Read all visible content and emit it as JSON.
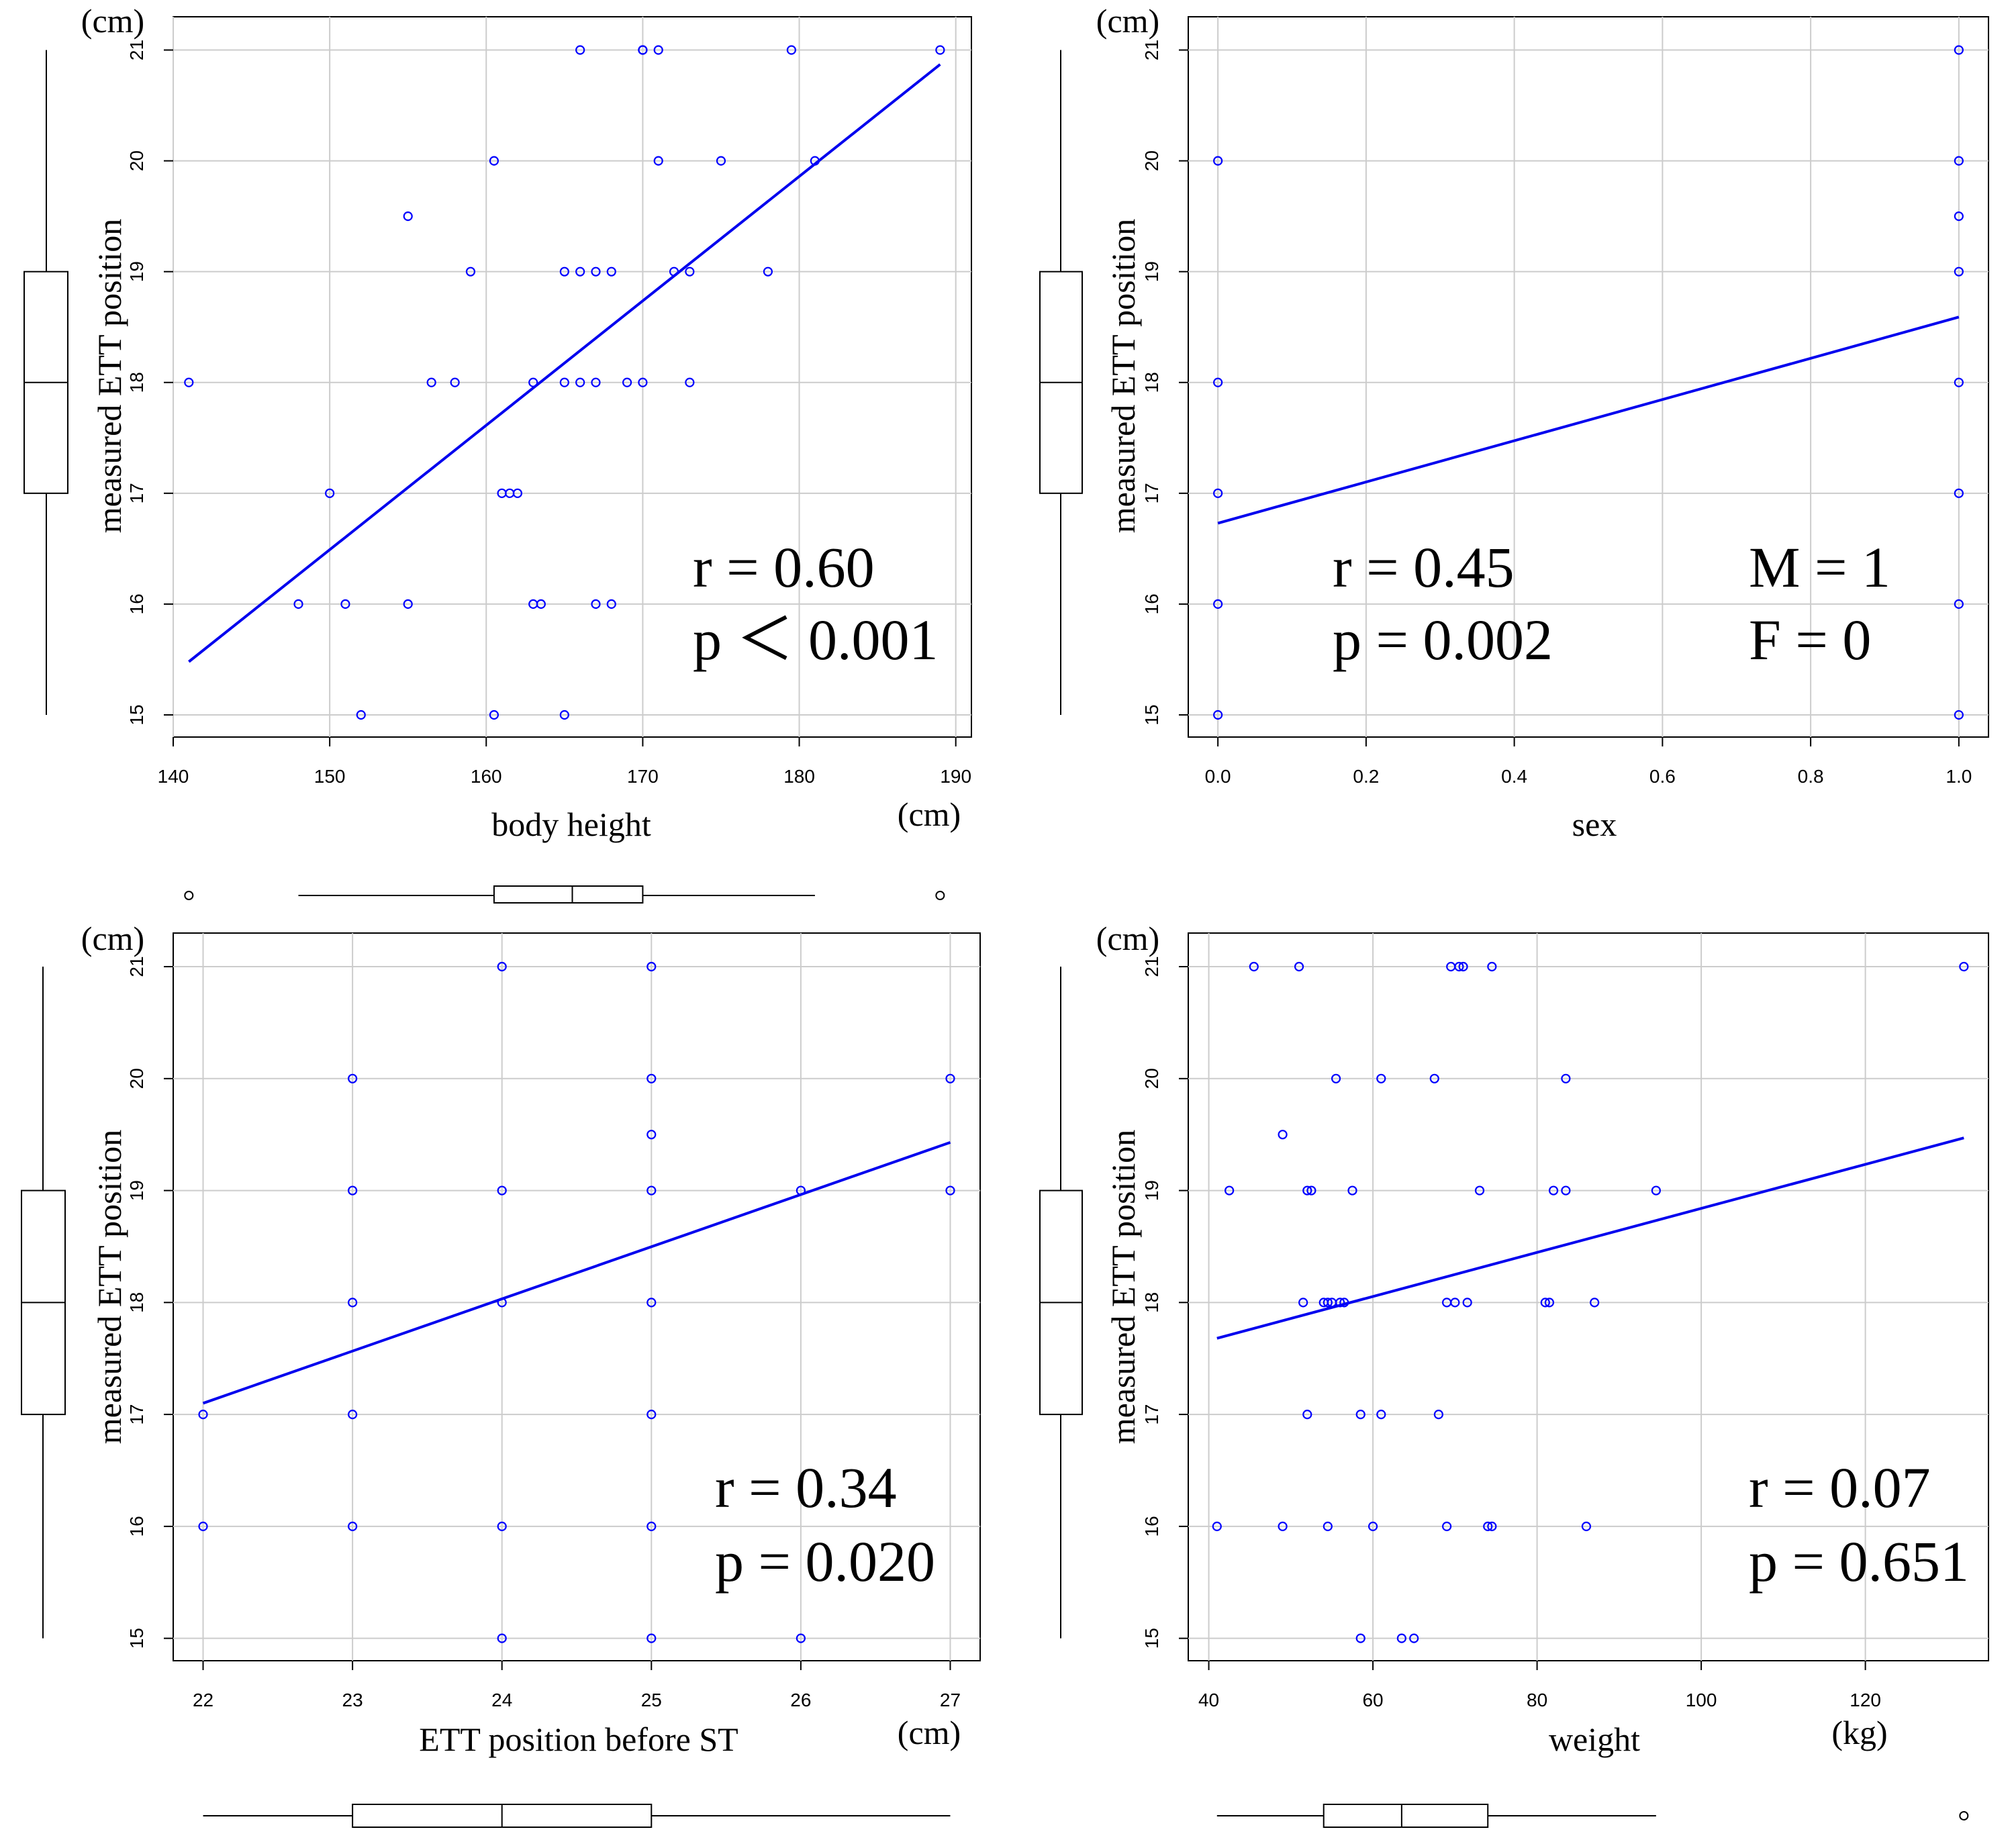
{
  "chart_data": [
    {
      "id": "height",
      "type": "scatter",
      "xlabel": "body height",
      "ylabel": "measured ETT position",
      "xunit": "(cm)",
      "yunit": "(cm)",
      "xlim": [
        140,
        191
      ],
      "ylim": [
        14.8,
        21.3
      ],
      "xticks": [
        140,
        150,
        160,
        170,
        180,
        190
      ],
      "xtick_labels": [
        "140",
        "150",
        "160",
        "170",
        "180",
        "190"
      ],
      "yticks": [
        15,
        16,
        17,
        18,
        19,
        20,
        21
      ],
      "ytick_labels": [
        "15",
        "16",
        "17",
        "18",
        "19",
        "20",
        "21"
      ],
      "x": [
        166,
        170,
        170,
        171,
        179.5,
        189,
        160.5,
        171,
        175,
        181,
        155,
        159,
        165,
        166,
        167,
        168,
        172,
        173,
        178,
        141,
        156.5,
        158,
        163,
        165,
        166,
        167,
        169,
        170,
        173,
        150,
        161,
        161.5,
        162,
        148,
        151,
        155,
        163,
        163.5,
        167,
        168,
        152,
        160.5,
        165
      ],
      "y": [
        21,
        21,
        21,
        21,
        21,
        21,
        20,
        20,
        20,
        20,
        19.5,
        19,
        19,
        19,
        19,
        19,
        19,
        19,
        19,
        18,
        18,
        18,
        18,
        18,
        18,
        18,
        18,
        18,
        18,
        17,
        17,
        17,
        17,
        16,
        16,
        16,
        16,
        16,
        16,
        16,
        15,
        15,
        15
      ],
      "fit": {
        "x": [
          141,
          189
        ],
        "y": [
          15.48,
          20.87
        ]
      },
      "stats": [
        "r = 0.60",
        "p ＜ 0.001"
      ],
      "xbox": {
        "whisker_low": 148,
        "q1": 160.5,
        "median": 165.5,
        "q3": 170,
        "whisker_high": 181,
        "outliers": [
          141,
          189
        ]
      },
      "ybox": {
        "whisker_low": 15,
        "q1": 17,
        "median": 18,
        "q3": 19,
        "whisker_high": 21
      }
    },
    {
      "id": "sex",
      "type": "scatter",
      "xlabel": "sex",
      "ylabel": "measured ETT position",
      "xunit": "",
      "yunit": "(cm)",
      "xlim": [
        -0.04,
        1.04
      ],
      "ylim": [
        14.8,
        21.3
      ],
      "xticks": [
        0,
        0.2,
        0.4,
        0.6,
        0.8,
        1.0
      ],
      "xtick_labels": [
        "0.0",
        "0.2",
        "0.4",
        "0.6",
        "0.8",
        "1.0"
      ],
      "yticks": [
        15,
        16,
        17,
        18,
        19,
        20,
        21
      ],
      "ytick_labels": [
        "15",
        "16",
        "17",
        "18",
        "19",
        "20",
        "21"
      ],
      "x": [
        0,
        0,
        0,
        0,
        0,
        1,
        1,
        1,
        1,
        1,
        1,
        1,
        1
      ],
      "y": [
        20,
        18,
        17,
        16,
        15,
        21,
        20,
        19.5,
        19,
        18,
        17,
        16,
        15
      ],
      "fit": {
        "x": [
          0,
          1
        ],
        "y": [
          16.73,
          18.59
        ]
      },
      "stats": [
        "r = 0.45",
        "p = 0.002"
      ],
      "extra": [
        "M = 1",
        "F = 0"
      ],
      "ybox": {
        "whisker_low": 15,
        "q1": 17,
        "median": 18,
        "q3": 19,
        "whisker_high": 21
      }
    },
    {
      "id": "ettbefore",
      "type": "scatter",
      "xlabel": "ETT position before ST",
      "ylabel": "measured ETT position",
      "xunit": "(cm)",
      "yunit": "(cm)",
      "xlim": [
        21.8,
        27.2
      ],
      "ylim": [
        14.8,
        21.3
      ],
      "xticks": [
        22,
        23,
        24,
        25,
        26,
        27
      ],
      "xtick_labels": [
        "22",
        "23",
        "24",
        "25",
        "26",
        "27"
      ],
      "yticks": [
        15,
        16,
        17,
        18,
        19,
        20,
        21
      ],
      "ytick_labels": [
        "15",
        "16",
        "17",
        "18",
        "19",
        "20",
        "21"
      ],
      "x": [
        22,
        22,
        23,
        23,
        23,
        23,
        23,
        24,
        24,
        24,
        24,
        24,
        25,
        25,
        25,
        25,
        25,
        25,
        25,
        25,
        26,
        26,
        27,
        27
      ],
      "y": [
        17,
        16,
        20,
        19,
        18,
        17,
        16,
        21,
        19,
        18,
        16,
        15,
        21,
        20,
        19.5,
        19,
        18,
        17,
        16,
        15,
        19,
        15,
        20,
        19
      ],
      "fit": {
        "x": [
          22,
          27
        ],
        "y": [
          17.1,
          19.43
        ]
      },
      "stats": [
        "r = 0.34",
        "p = 0.020"
      ],
      "xbox": {
        "whisker_low": 22,
        "q1": 23,
        "median": 24,
        "q3": 25,
        "whisker_high": 27,
        "outliers": []
      },
      "ybox": {
        "whisker_low": 15,
        "q1": 17,
        "median": 18,
        "q3": 19,
        "whisker_high": 21
      }
    },
    {
      "id": "weight",
      "type": "scatter",
      "xlabel": "weight",
      "ylabel": "measured ETT position",
      "xunit": "(kg)",
      "yunit": "(cm)",
      "xlim": [
        37.5,
        135
      ],
      "ylim": [
        14.8,
        21.3
      ],
      "xticks": [
        40,
        60,
        80,
        100,
        120
      ],
      "xtick_labels": [
        "40",
        "60",
        "80",
        "100",
        "120"
      ],
      "yticks": [
        15,
        16,
        17,
        18,
        19,
        20,
        21
      ],
      "ytick_labels": [
        "15",
        "16",
        "17",
        "18",
        "19",
        "20",
        "21"
      ],
      "x": [
        45.5,
        51,
        69.5,
        70.5,
        71,
        74.5,
        132,
        55.5,
        61,
        67.5,
        83.5,
        49,
        42.5,
        52,
        52.5,
        57.5,
        73,
        82,
        83.5,
        94.5,
        51.5,
        54,
        54.5,
        55,
        56,
        56.5,
        69,
        70,
        71.5,
        81,
        81.5,
        87,
        52,
        58.5,
        61,
        68,
        41,
        49,
        54.5,
        60,
        69,
        74,
        74.5,
        86,
        58.5,
        63.5,
        65
      ],
      "y": [
        21,
        21,
        21,
        21,
        21,
        21,
        21,
        20,
        20,
        20,
        20,
        19.5,
        19,
        19,
        19,
        19,
        19,
        19,
        19,
        19,
        18,
        18,
        18,
        18,
        18,
        18,
        18,
        18,
        18,
        18,
        18,
        18,
        17,
        17,
        17,
        17,
        16,
        16,
        16,
        16,
        16,
        16,
        16,
        16,
        15,
        15,
        15
      ],
      "fit": {
        "x": [
          41,
          132
        ],
        "y": [
          17.68,
          19.47
        ]
      },
      "stats": [
        "r = 0.07",
        "p = 0.651"
      ],
      "xbox": {
        "whisker_low": 41,
        "q1": 54,
        "median": 63.5,
        "q3": 74,
        "whisker_high": 94.5,
        "outliers": [
          132
        ]
      },
      "ybox": {
        "whisker_low": 15,
        "q1": 17,
        "median": 18,
        "q3": 19,
        "whisker_high": 21
      }
    }
  ],
  "colors": {
    "points": "#0000ff",
    "fit": "#0000ee",
    "grid": "#cccccc",
    "axis": "#000000"
  }
}
